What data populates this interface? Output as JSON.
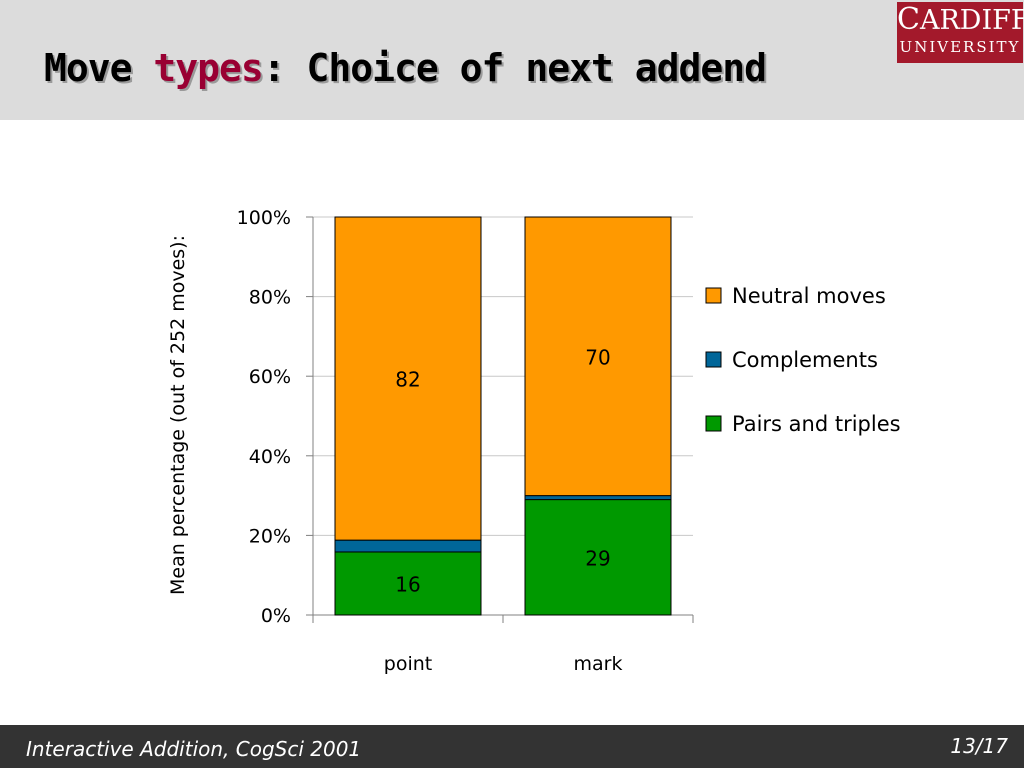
{
  "slide": {
    "title_part1": "Move ",
    "title_part2": "types",
    "title_part3": ": Choice of next addend",
    "footer_left": "Interactive Addition, CogSci 2001",
    "footer_right": "13/17",
    "logo_line1_first": "C",
    "logo_line1_rest": "ARDIFF",
    "logo_line2": "UNIVERSITY",
    "colors": {
      "header_bg": "#dcdcdc",
      "title_highlight": "#990033",
      "logo_bg": "#a3192b",
      "footer_bg": "#333333"
    }
  },
  "chart_data": {
    "type": "bar",
    "stacked": true,
    "categories": [
      "point",
      "mark"
    ],
    "series": [
      {
        "name": "Pairs and triples",
        "values": [
          16,
          29
        ],
        "color": "#009900"
      },
      {
        "name": "Complements",
        "values": [
          3,
          1
        ],
        "color": "#006699"
      },
      {
        "name": "Neutral moves",
        "values": [
          82,
          70
        ],
        "color": "#ff9900"
      }
    ],
    "legend_order": [
      "Neutral moves",
      "Complements",
      "Pairs and triples"
    ],
    "ylabel": "Mean percentage (out of 252 moves):",
    "xlabel": "",
    "yticks": [
      "0%",
      "20%",
      "40%",
      "60%",
      "80%",
      "100%"
    ],
    "ylim": [
      0,
      100
    ],
    "normalized_to_100_percent": true,
    "grid": true,
    "legend_position": "right"
  }
}
